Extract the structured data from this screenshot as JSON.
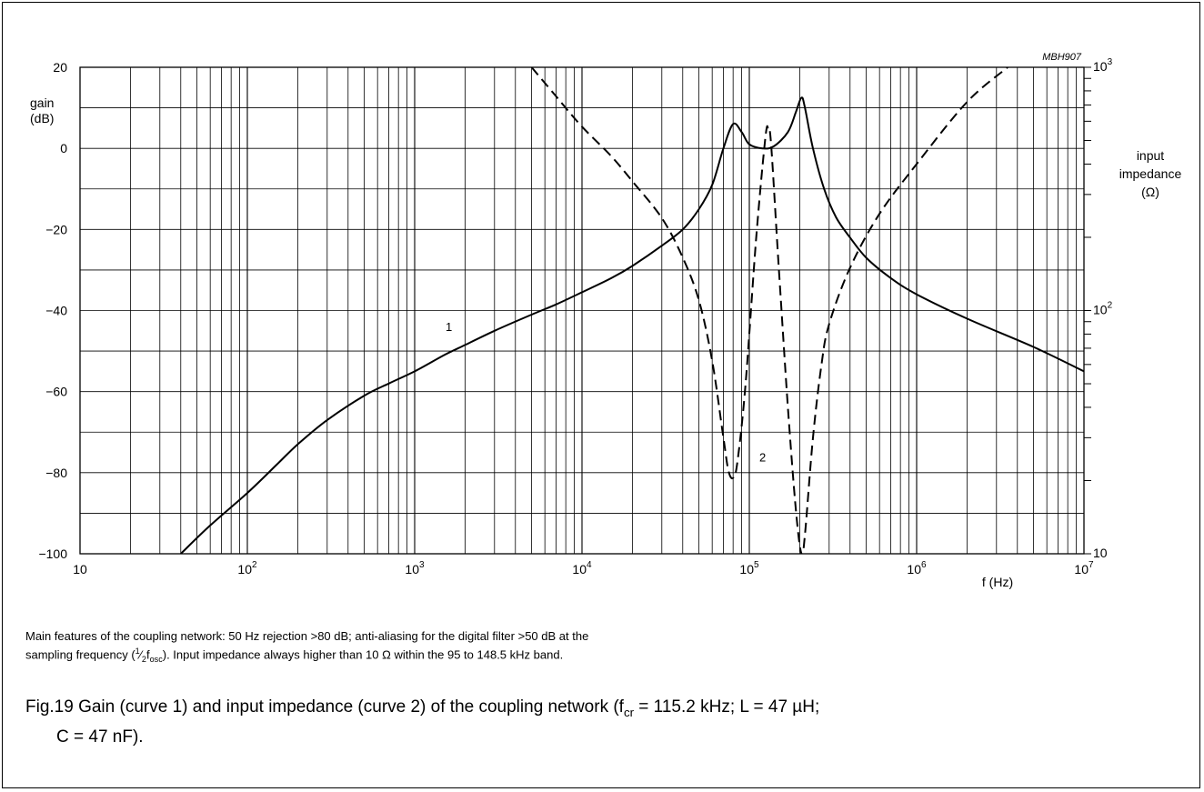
{
  "chart_data": {
    "type": "line",
    "code": "MBH907",
    "x_axis": {
      "label": "f (Hz)",
      "scale": "log",
      "range": [
        10,
        10000000
      ],
      "ticks": [
        {
          "value": 10,
          "base": "10",
          "exp": ""
        },
        {
          "value": 100,
          "base": "10",
          "exp": "2"
        },
        {
          "value": 1000,
          "base": "10",
          "exp": "3"
        },
        {
          "value": 10000,
          "base": "10",
          "exp": "4"
        },
        {
          "value": 100000,
          "base": "10",
          "exp": "5"
        },
        {
          "value": 1000000,
          "base": "10",
          "exp": "6"
        },
        {
          "value": 10000000,
          "base": "10",
          "exp": "7"
        }
      ]
    },
    "y_left": {
      "label_line1": "gain",
      "label_line2": "(dB)",
      "range": [
        -100,
        20
      ],
      "ticks": [
        {
          "value": 20,
          "label": "20"
        },
        {
          "value": 0,
          "label": "0"
        },
        {
          "value": -20,
          "label": "−20"
        },
        {
          "value": -40,
          "label": "−40"
        },
        {
          "value": -60,
          "label": "−60"
        },
        {
          "value": -80,
          "label": "−80"
        },
        {
          "value": -100,
          "label": "−100"
        }
      ]
    },
    "y_right": {
      "label_line1": "input",
      "label_line2": "impedance",
      "label_line3": "(Ω)",
      "scale": "log",
      "range": [
        10,
        1000
      ],
      "ticks": [
        {
          "value": 10,
          "base": "10",
          "exp": ""
        },
        {
          "value": 100,
          "base": "10",
          "exp": "2"
        },
        {
          "value": 1000,
          "base": "10",
          "exp": "3"
        }
      ]
    },
    "grid": true,
    "series": [
      {
        "name": "1",
        "style": "solid",
        "axis": "left",
        "points": [
          [
            40,
            -100
          ],
          [
            60,
            -93
          ],
          [
            100,
            -85
          ],
          [
            150,
            -78
          ],
          [
            200,
            -73
          ],
          [
            300,
            -67
          ],
          [
            500,
            -61
          ],
          [
            700,
            -58
          ],
          [
            1000,
            -55
          ],
          [
            1500,
            -51
          ],
          [
            2000,
            -48.5
          ],
          [
            3000,
            -45
          ],
          [
            5000,
            -41
          ],
          [
            7000,
            -38.5
          ],
          [
            10000,
            -35.5
          ],
          [
            15000,
            -32
          ],
          [
            20000,
            -29
          ],
          [
            30000,
            -24
          ],
          [
            40000,
            -20
          ],
          [
            50000,
            -15
          ],
          [
            60000,
            -9
          ],
          [
            70000,
            0
          ],
          [
            80000,
            6
          ],
          [
            90000,
            4
          ],
          [
            100000,
            1
          ],
          [
            120000,
            0
          ],
          [
            140000,
            0.5
          ],
          [
            170000,
            4
          ],
          [
            190000,
            9
          ],
          [
            205000,
            12.5
          ],
          [
            215000,
            10
          ],
          [
            240000,
            0
          ],
          [
            280000,
            -10
          ],
          [
            330000,
            -17
          ],
          [
            400000,
            -22
          ],
          [
            500000,
            -27
          ],
          [
            700000,
            -32
          ],
          [
            1000000,
            -36
          ],
          [
            2000000,
            -42
          ],
          [
            5000000,
            -49
          ],
          [
            10000000,
            -55
          ]
        ]
      },
      {
        "name": "2",
        "style": "dashed",
        "axis": "right",
        "points": [
          [
            5000,
            1000
          ],
          [
            7000,
            760
          ],
          [
            10000,
            570
          ],
          [
            15000,
            430
          ],
          [
            20000,
            340
          ],
          [
            30000,
            240
          ],
          [
            40000,
            165
          ],
          [
            50000,
            110
          ],
          [
            60000,
            62
          ],
          [
            70000,
            30
          ],
          [
            75000,
            22
          ],
          [
            80000,
            20.5
          ],
          [
            85000,
            24
          ],
          [
            95000,
            50
          ],
          [
            110000,
            200
          ],
          [
            125000,
            520
          ],
          [
            130000,
            550
          ],
          [
            135000,
            480
          ],
          [
            150000,
            150
          ],
          [
            170000,
            40
          ],
          [
            190000,
            15
          ],
          [
            205000,
            10
          ],
          [
            215000,
            12
          ],
          [
            240000,
            30
          ],
          [
            270000,
            60
          ],
          [
            300000,
            88
          ],
          [
            400000,
            150
          ],
          [
            600000,
            250
          ],
          [
            1000000,
            400
          ],
          [
            2000000,
            720
          ],
          [
            3500000,
            1000
          ]
        ]
      }
    ],
    "curve_labels": [
      {
        "text": "1",
        "x": 1600,
        "y": -45
      },
      {
        "text": "2",
        "x": 120000,
        "y_right": 24
      }
    ]
  },
  "note": {
    "line1": "Main features of the coupling network: 50 Hz rejection >80 dB; anti-aliasing for the digital filter >50 dB at the",
    "line2_pre": "sampling frequency (",
    "half": "1",
    "half_den": "2",
    "fosc_f": "f",
    "fosc_sub": "osc",
    "line2_post": "). Input impedance always higher than 10 Ω within the 95 to 148.5 kHz band."
  },
  "caption": {
    "part1": "Fig.19  Gain (curve 1) and input impedance (curve 2) of the coupling network (f",
    "fcr_sub": "cr",
    "part2": " = 115.2 kHz; L = 47 µH;",
    "line2": "C = 47 nF)."
  }
}
